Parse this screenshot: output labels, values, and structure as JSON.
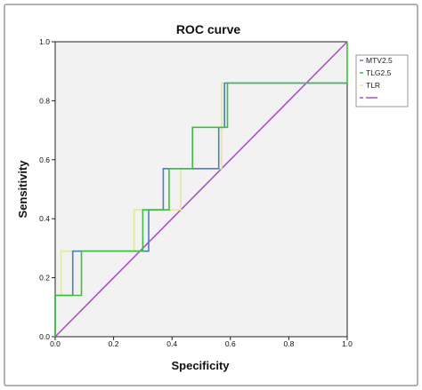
{
  "chart_data": {
    "type": "line",
    "title": "ROC curve",
    "xlabel": "Specificity",
    "ylabel": "Sensitivity",
    "xlim": [
      0,
      1
    ],
    "ylim": [
      0,
      1
    ],
    "x_ticks": [
      "0.0",
      "0.2",
      "0.4",
      "0.6",
      "0.8",
      "1.0"
    ],
    "y_ticks": [
      "0.0",
      "0.2",
      "0.4",
      "0.6",
      "0.8",
      "1.0"
    ],
    "grid": false,
    "legend_position": "top-right",
    "background_color": "#f2f2f2",
    "series": [
      {
        "name": "MTV2.5",
        "color": "#4a7fc1",
        "x": [
          0,
          0,
          0.06,
          0.06,
          0.32,
          0.32,
          0.37,
          0.37,
          0.56,
          0.56,
          0.58,
          0.58,
          1.0
        ],
        "y": [
          0,
          0.14,
          0.14,
          0.29,
          0.29,
          0.43,
          0.43,
          0.57,
          0.57,
          0.71,
          0.71,
          0.86,
          0.86
        ]
      },
      {
        "name": "TLG2.5",
        "color": "#3fbf3f",
        "x": [
          0,
          0,
          0.02,
          0.02,
          0.09,
          0.09,
          0.3,
          0.3,
          0.39,
          0.39,
          0.47,
          0.47,
          0.53,
          0.53,
          0.59,
          0.59,
          1.0,
          1.0
        ],
        "y": [
          0,
          0.14,
          0.14,
          0.14,
          0.14,
          0.29,
          0.29,
          0.43,
          0.43,
          0.57,
          0.57,
          0.71,
          0.71,
          0.71,
          0.71,
          0.86,
          0.86,
          1.0
        ]
      },
      {
        "name": "TLR",
        "color": "#e6e6a0",
        "x": [
          0,
          0,
          0.02,
          0.02,
          0.27,
          0.27,
          0.43,
          0.43,
          0.57,
          0.57,
          1.0
        ],
        "y": [
          0,
          0.14,
          0.14,
          0.29,
          0.29,
          0.43,
          0.43,
          0.57,
          0.57,
          0.86,
          0.86
        ]
      },
      {
        "name": "",
        "color": "#b04fc4",
        "x": [
          0,
          1
        ],
        "y": [
          0,
          1
        ]
      }
    ]
  }
}
